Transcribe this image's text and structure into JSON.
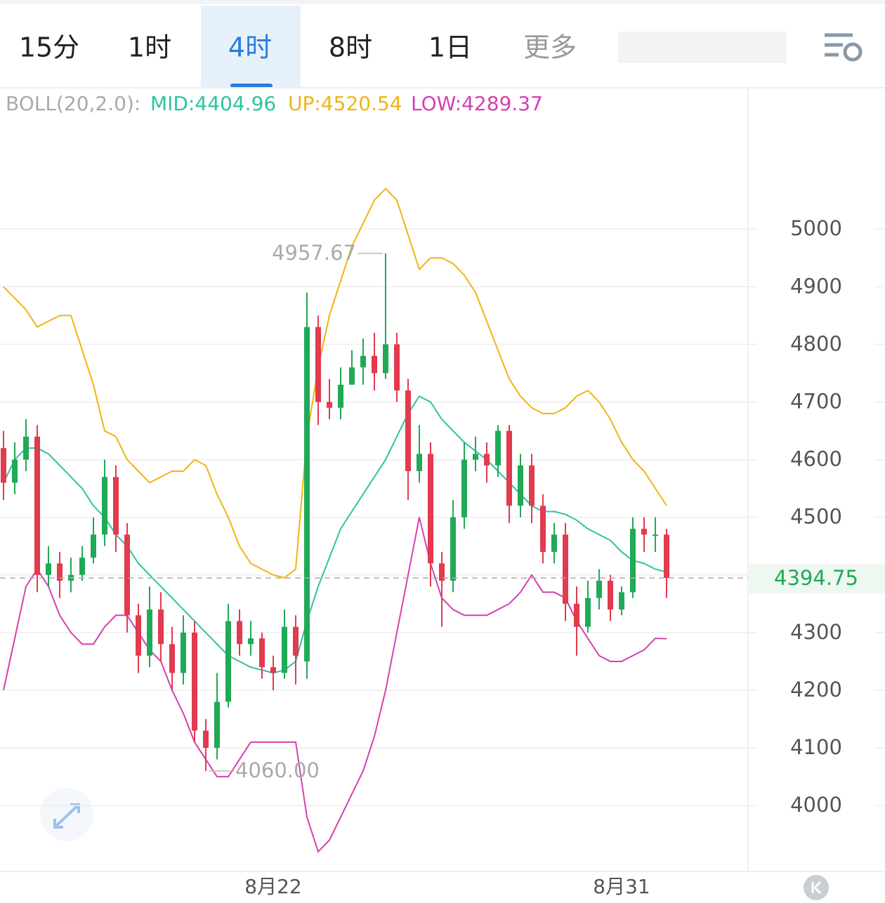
{
  "tabs": [
    "15分",
    "1时",
    "4时",
    "8时",
    "1日",
    "更多"
  ],
  "chart_data": {
    "type": "candlestick",
    "indicator": {
      "name": "BOLL(20,2.0):",
      "mid": "MID:4404.96",
      "up": "UP:4520.54",
      "low": "LOW:4289.37"
    },
    "categories": [
      null,
      null,
      null,
      null,
      null,
      null,
      null,
      null,
      null,
      null,
      null,
      null,
      null,
      null,
      null,
      null,
      null,
      null,
      null,
      null,
      null,
      null,
      null,
      null,
      "8月22",
      null,
      null,
      null,
      null,
      null,
      null,
      null,
      null,
      null,
      null,
      null,
      null,
      null,
      null,
      null,
      null,
      null,
      null,
      null,
      null,
      null,
      null,
      null,
      null,
      null,
      null,
      null,
      null,
      null,
      null,
      "8月31",
      null,
      null,
      null,
      null
    ],
    "open": [
      4620,
      4560,
      4600,
      4640,
      4400,
      4420,
      4390,
      4400,
      4430,
      4470,
      4570,
      4470,
      4330,
      4260,
      4340,
      4280,
      4230,
      4300,
      4130,
      4100,
      4180,
      4320,
      4280,
      4290,
      4240,
      4230,
      4310,
      4250,
      4830,
      4700,
      4690,
      4730,
      4760,
      4780,
      4750,
      4800,
      4720,
      4580,
      4610,
      4420,
      4390,
      4500,
      4600,
      4610,
      4590,
      4650,
      4520,
      4590,
      4520,
      4440,
      4470,
      4350,
      4310,
      4360,
      4390,
      4340,
      4370,
      4480,
      4470,
      4470
    ],
    "high": [
      4650,
      4630,
      4670,
      4660,
      4450,
      4440,
      4430,
      4450,
      4500,
      4600,
      4590,
      4490,
      4350,
      4380,
      4370,
      4310,
      4330,
      4320,
      4150,
      4230,
      4350,
      4340,
      4320,
      4300,
      4260,
      4340,
      4330,
      4890,
      4850,
      4740,
      4760,
      4790,
      4810,
      4820,
      4957.67,
      4820,
      4740,
      4660,
      4630,
      4440,
      4530,
      4630,
      4640,
      4630,
      4660,
      4660,
      4610,
      4610,
      4540,
      4490,
      4490,
      4380,
      4390,
      4410,
      4400,
      4380,
      4500,
      4500,
      4500,
      4480
    ],
    "low": [
      4530,
      4540,
      4580,
      4370,
      4380,
      4360,
      4370,
      4390,
      4420,
      4450,
      4440,
      4300,
      4230,
      4240,
      4250,
      4200,
      4210,
      4110,
      4060,
      4080,
      4170,
      4260,
      4260,
      4220,
      4200,
      4220,
      4210,
      4220,
      4660,
      4670,
      4670,
      4740,
      4730,
      4720,
      4740,
      4700,
      4530,
      4560,
      4380,
      4310,
      4370,
      4480,
      4580,
      4560,
      4570,
      4490,
      4500,
      4490,
      4420,
      4420,
      4320,
      4260,
      4300,
      4340,
      4320,
      4330,
      4360,
      4440,
      4440,
      4360
    ],
    "close": [
      4560,
      4600,
      4640,
      4400,
      4420,
      4390,
      4400,
      4430,
      4470,
      4570,
      4470,
      4330,
      4260,
      4340,
      4280,
      4230,
      4300,
      4130,
      4100,
      4180,
      4320,
      4280,
      4290,
      4240,
      4230,
      4310,
      4260,
      4830,
      4700,
      4690,
      4730,
      4760,
      4780,
      4750,
      4800,
      4720,
      4580,
      4610,
      4420,
      4390,
      4500,
      4600,
      4610,
      4590,
      4650,
      4520,
      4590,
      4520,
      4440,
      4470,
      4350,
      4310,
      4360,
      4390,
      4340,
      4370,
      4480,
      4470,
      4470,
      4394.75
    ],
    "up_color": "#20a957",
    "down_color": "#e23a4e",
    "series": [
      {
        "name": "UP",
        "color": "#f0b414",
        "values": [
          4900,
          4880,
          4860,
          4830,
          4840,
          4850,
          4850,
          4790,
          4730,
          4650,
          4640,
          4600,
          4580,
          4560,
          4570,
          4580,
          4580,
          4600,
          4590,
          4540,
          4500,
          4450,
          4420,
          4410,
          4400,
          4395,
          4410,
          4640,
          4760,
          4850,
          4910,
          4970,
          5010,
          5050,
          5070,
          5050,
          4990,
          4930,
          4950,
          4950,
          4940,
          4920,
          4890,
          4840,
          4790,
          4740,
          4710,
          4690,
          4680,
          4680,
          4690,
          4710,
          4720,
          4700,
          4670,
          4630,
          4600,
          4580,
          4550,
          4520.54
        ]
      },
      {
        "name": "MID",
        "color": "#2ec4a0",
        "values": [
          4560,
          4600,
          4620,
          4620,
          4610,
          4590,
          4570,
          4550,
          4520,
          4500,
          4470,
          4450,
          4420,
          4400,
          4380,
          4360,
          4340,
          4320,
          4300,
          4280,
          4260,
          4250,
          4240,
          4235,
          4230,
          4235,
          4250,
          4320,
          4380,
          4430,
          4480,
          4510,
          4540,
          4570,
          4600,
          4640,
          4680,
          4710,
          4700,
          4670,
          4650,
          4630,
          4615,
          4600,
          4580,
          4560,
          4540,
          4520,
          4510,
          4510,
          4505,
          4495,
          4480,
          4470,
          4460,
          4440,
          4425,
          4420,
          4410,
          4404.96
        ]
      },
      {
        "name": "LOW",
        "color": "#d63fb0",
        "values": [
          4200,
          4290,
          4380,
          4410,
          4380,
          4330,
          4300,
          4280,
          4280,
          4310,
          4330,
          4330,
          4300,
          4270,
          4250,
          4200,
          4160,
          4110,
          4080,
          4050,
          4050,
          4080,
          4110,
          4110,
          4110,
          4110,
          4110,
          3980,
          3920,
          3940,
          3980,
          4020,
          4060,
          4120,
          4200,
          4300,
          4400,
          4500,
          4420,
          4360,
          4340,
          4330,
          4330,
          4330,
          4340,
          4350,
          4370,
          4400,
          4370,
          4370,
          4360,
          4320,
          4290,
          4260,
          4250,
          4250,
          4260,
          4270,
          4290,
          4289.37
        ]
      }
    ],
    "annotations": [
      {
        "value": 4957.67,
        "label": "4957.67"
      },
      {
        "value": 4060,
        "label": "4060.00"
      }
    ],
    "last_price": 4394.75,
    "ylim": [
      3887,
      5245
    ],
    "yticks": [
      4000,
      4100,
      4200,
      4300,
      4400,
      4500,
      4600,
      4700,
      4800,
      4900,
      5000
    ],
    "grid": true
  }
}
